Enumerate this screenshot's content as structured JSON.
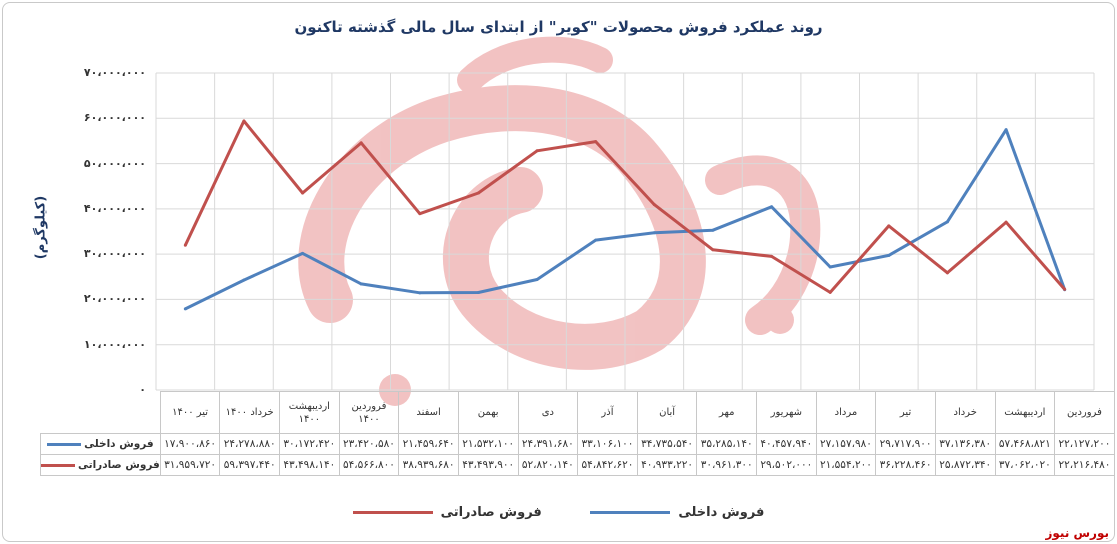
{
  "title": "روند عملکرد فروش محصولات \"کویر\" از ابتدای سال مالی گذشته تاکنون",
  "source_label": "بورس نیوز",
  "chart_data": {
    "type": "line",
    "title": "روند عملکرد فروش محصولات \"کویر\" از ابتدای سال مالی گذشته تاکنون",
    "ylabel": "(کیلوگرم)",
    "ylim": [
      0,
      70000000
    ],
    "yticks": [
      "۰",
      "۱۰،۰۰۰،۰۰۰",
      "۲۰،۰۰۰،۰۰۰",
      "۳۰،۰۰۰،۰۰۰",
      "۴۰،۰۰۰،۰۰۰",
      "۵۰،۰۰۰،۰۰۰",
      "۶۰،۰۰۰،۰۰۰",
      "۷۰،۰۰۰،۰۰۰"
    ],
    "ytick_values": [
      0,
      10000000,
      20000000,
      30000000,
      40000000,
      50000000,
      60000000,
      70000000
    ],
    "grid": true,
    "legend": "bottom",
    "categories": [
      "فروردین",
      "اردیبهشت",
      "خرداد",
      "تیر",
      "مرداد",
      "شهریور",
      "مهر",
      "آبان",
      "آذر",
      "دی",
      "بهمن",
      "اسفند",
      "فروردین ۱۴۰۰",
      "اردیبهشت ۱۴۰۰",
      "خرداد ۱۴۰۰",
      "تیر ۱۴۰۰"
    ],
    "series": [
      {
        "name": "فروش داخلی",
        "color": "#4f81bd",
        "values": [
          22127200,
          57468821,
          37136380,
          29717900,
          27157980,
          40457940,
          35285140,
          34735540,
          33106100,
          24391680,
          21532100,
          21459640,
          23420580,
          30172420,
          24278880,
          17900860
        ],
        "labels": [
          "۲۲،۱۲۷،۲۰۰",
          "۵۷،۴۶۸،۸۲۱",
          "۳۷،۱۳۶،۳۸۰",
          "۲۹،۷۱۷،۹۰۰",
          "۲۷،۱۵۷،۹۸۰",
          "۴۰،۴۵۷،۹۴۰",
          "۳۵،۲۸۵،۱۴۰",
          "۳۴،۷۳۵،۵۴۰",
          "۳۳،۱۰۶،۱۰۰",
          "۲۴،۳۹۱،۶۸۰",
          "۲۱،۵۳۲،۱۰۰",
          "۲۱،۴۵۹،۶۴۰",
          "۲۳،۴۲۰،۵۸۰",
          "۳۰،۱۷۲،۴۲۰",
          "۲۴،۲۷۸،۸۸۰",
          "۱۷،۹۰۰،۸۶۰"
        ]
      },
      {
        "name": "فروش صادراتی",
        "color": "#c0504d",
        "values": [
          22216480,
          37062020,
          25872340,
          36228460,
          21554200,
          29502000,
          30961300,
          40933220,
          54842620,
          52820140,
          43493900,
          38939680,
          54566800,
          43498140,
          59397440,
          31959720
        ],
        "labels": [
          "۲۲،۲۱۶،۴۸۰",
          "۳۷،۰۶۲،۰۲۰",
          "۲۵،۸۷۲،۳۴۰",
          "۳۶،۲۲۸،۴۶۰",
          "۲۱،۵۵۴،۲۰۰",
          "۲۹،۵۰۲،۰۰۰",
          "۳۰،۹۶۱،۳۰۰",
          "۴۰،۹۳۳،۲۲۰",
          "۵۴،۸۴۲،۶۲۰",
          "۵۲،۸۲۰،۱۴۰",
          "۴۳،۴۹۳،۹۰۰",
          "۳۸،۹۳۹،۶۸۰",
          "۵۴،۵۶۶،۸۰۰",
          "۴۳،۴۹۸،۱۴۰",
          "۵۹،۳۹۷،۴۴۰",
          "۳۱،۹۵۹،۷۲۰"
        ]
      }
    ]
  }
}
